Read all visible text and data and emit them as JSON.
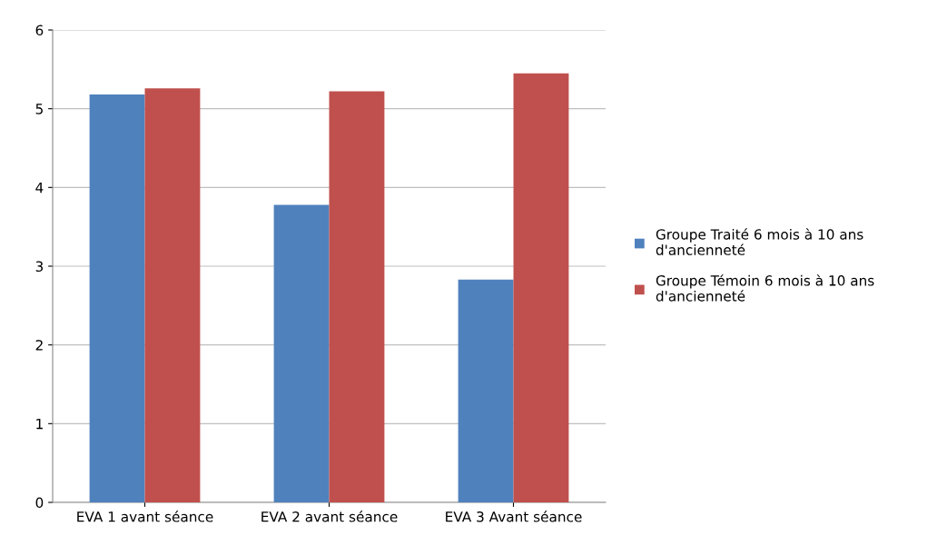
{
  "chart_data": {
    "type": "bar",
    "categories": [
      "EVA 1 avant séance",
      "EVA 2 avant séance",
      "EVA 3 Avant séance"
    ],
    "series": [
      {
        "name": "Groupe Traité 6 mois à 10 ans\nd'ancienneté",
        "color": "#4f81bd",
        "values": [
          5.18,
          3.78,
          2.83
        ]
      },
      {
        "name": "Groupe Témoin 6 mois à 10 ans\nd'ancienneté",
        "color": "#c0504d",
        "values": [
          5.26,
          5.22,
          5.45
        ]
      }
    ],
    "ylim": [
      0,
      6
    ],
    "yticks": [
      0,
      1,
      2,
      3,
      4,
      5,
      6
    ],
    "grid": "y",
    "legend": "right"
  }
}
